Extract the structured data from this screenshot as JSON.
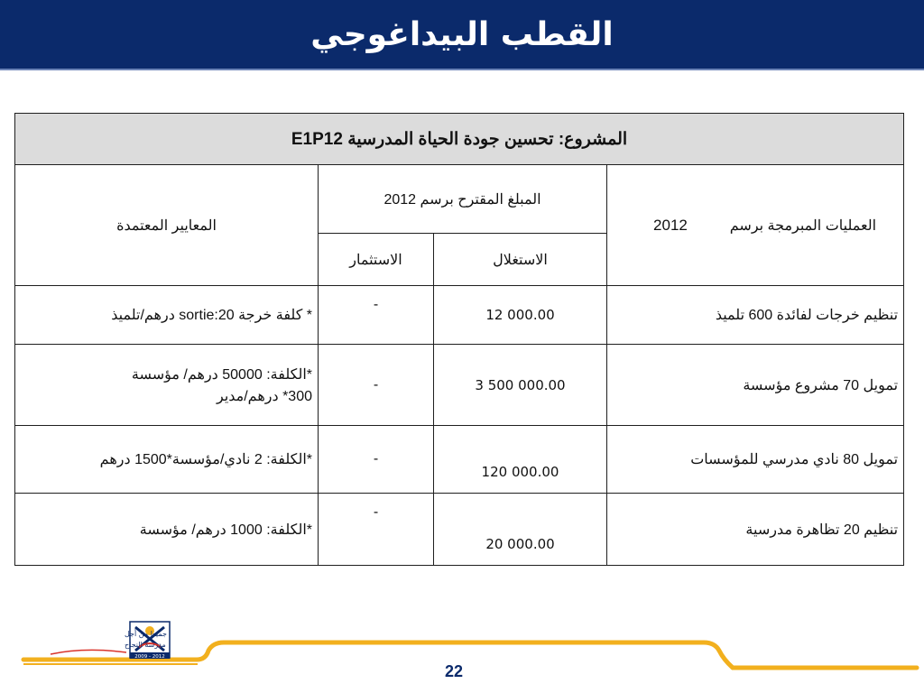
{
  "header": {
    "title": "القطب البيداغوجي"
  },
  "table": {
    "project_label": "المشروع:  تحسين جودة الحياة المدرسية",
    "project_code": "E1P12",
    "col_criteria": "المعايير المعتمدة",
    "col_budget": "المبلغ المقترح برسم 2012",
    "col_invest": "الاستثمار",
    "col_operating": "الاستغلال",
    "col_operations": "العمليات المبرمجة برسم",
    "col_operations_year": "2012",
    "rows": [
      {
        "operation": "تنظيم خرجات لفائدة 600 تلميذ",
        "operating": "12 000.00",
        "invest": "-",
        "criteria_1": "* كلفة خرجة 20:sortie درهم/تلميذ",
        "criteria_2": ""
      },
      {
        "operation": "تمويل 70 مشروع مؤسسة",
        "operating": "3 500 000.00",
        "invest": "-",
        "criteria_1": "*الكلفة: 50000 درهم/ مؤسسة",
        "criteria_2": "300* درهم/مدير"
      },
      {
        "operation": "تمويل 80 نادي مدرسي للمؤسسات",
        "operating": "120 000.00",
        "invest": "-",
        "criteria_1": "*الكلفة: 2 نادي/مؤسسة*1500 درهم",
        "criteria_2": ""
      },
      {
        "operation": "تنظيم 20 تظاهرة مدرسية",
        "operating": "20 000.00",
        "invest": "-",
        "criteria_1": "*الكلفة: 1000 درهم/ مؤسسة",
        "criteria_2": ""
      }
    ]
  },
  "footer": {
    "page_number": "22",
    "logo_text_1": "جميعا من أجل",
    "logo_text_2": "مدرسة النجاح",
    "logo_years": "2009 - 2012",
    "accent_color": "#f2b01e",
    "brand_color": "#0b2a6b"
  }
}
